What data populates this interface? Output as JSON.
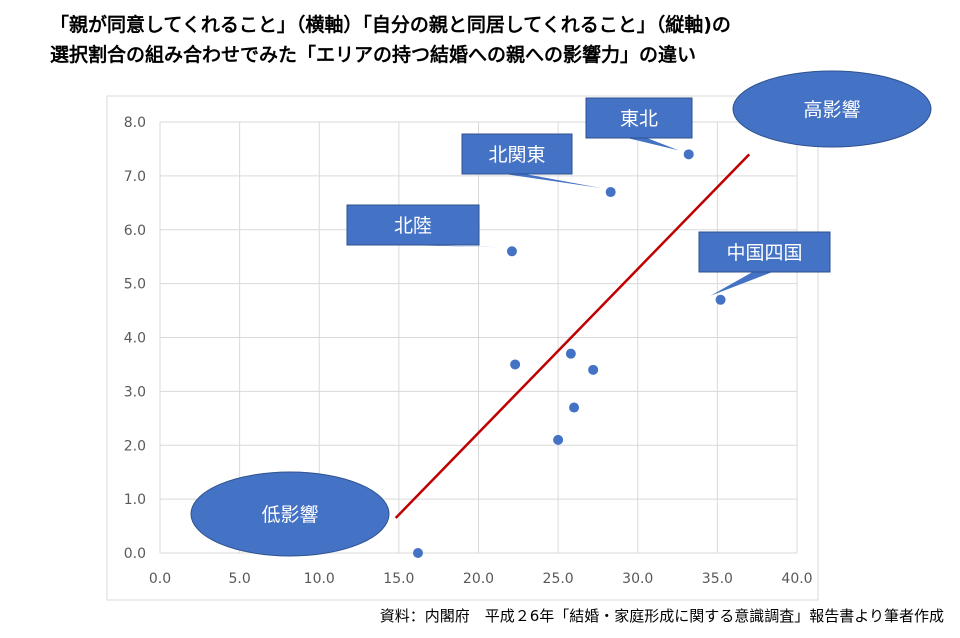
{
  "title": {
    "line1": "「親が同意してくれること」（横軸）「自分の親と同居してくれること」（縦軸)の",
    "line2": "選択割合の組み合わせでみた「エリアの持つ結婚への親への影響力」の違い"
  },
  "source": "資料：内閣府　平成２6年「結婚・家庭形成に関する意識調査」報告書より筆者作成",
  "chart_data": {
    "type": "scatter",
    "xlim": [
      0,
      40
    ],
    "ylim": [
      0,
      8
    ],
    "xticks": [
      "0.0",
      "5.0",
      "10.0",
      "15.0",
      "20.0",
      "25.0",
      "30.0",
      "35.0",
      "40.0"
    ],
    "yticks": [
      "0.0",
      "1.0",
      "2.0",
      "3.0",
      "4.0",
      "5.0",
      "6.0",
      "7.0",
      "8.0"
    ],
    "grid": true,
    "point_color": "#4472C4",
    "points": [
      {
        "x": 16.2,
        "y": 0.0
      },
      {
        "x": 25.0,
        "y": 2.1
      },
      {
        "x": 26.0,
        "y": 2.7
      },
      {
        "x": 27.2,
        "y": 3.4
      },
      {
        "x": 22.3,
        "y": 3.5
      },
      {
        "x": 25.8,
        "y": 3.7
      },
      {
        "x": 35.2,
        "y": 4.7
      },
      {
        "x": 22.1,
        "y": 5.6
      },
      {
        "x": 28.3,
        "y": 6.7
      },
      {
        "x": 33.2,
        "y": 7.4
      }
    ],
    "trend_line": {
      "color": "#C00000",
      "from": {
        "x": 14.8,
        "y": 0.65
      },
      "to": {
        "x": 37.0,
        "y": 7.4
      }
    },
    "callouts": [
      {
        "text": "北陸",
        "target": {
          "x": 22.1,
          "y": 5.6
        }
      },
      {
        "text": "北関東",
        "target": {
          "x": 28.3,
          "y": 6.7
        }
      },
      {
        "text": "東北",
        "target": {
          "x": 33.2,
          "y": 7.4
        }
      },
      {
        "text": "中国四国",
        "target": {
          "x": 35.2,
          "y": 4.7
        }
      }
    ],
    "ellipses": [
      {
        "text": "高影響"
      },
      {
        "text": "低影響"
      }
    ],
    "shape_color": "#4472C4"
  }
}
